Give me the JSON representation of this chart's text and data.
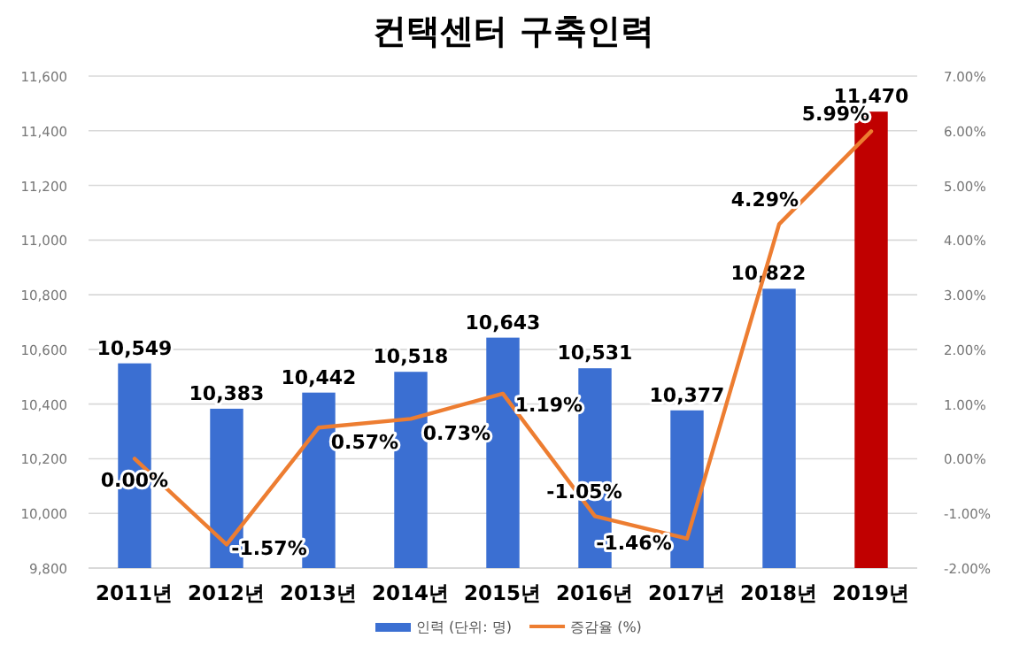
{
  "chart_data": {
    "type": "bar",
    "title": "컨택센터 구축인력",
    "categories": [
      "2011년",
      "2012년",
      "2013년",
      "2014년",
      "2015년",
      "2016년",
      "2017년",
      "2018년",
      "2019년"
    ],
    "series": [
      {
        "name": "인력 (단위: 명)",
        "colors": [
          "#3b6fd2",
          "#3b6fd2",
          "#3b6fd2",
          "#3b6fd2",
          "#3b6fd2",
          "#3b6fd2",
          "#3b6fd2",
          "#3b6fd2",
          "#c00000"
        ],
        "values": [
          10549,
          10383,
          10442,
          10518,
          10643,
          10531,
          10377,
          10822,
          11470
        ],
        "value_labels": [
          "10,549",
          "10,383",
          "10,442",
          "10,518",
          "10,643",
          "10,531",
          "10,377",
          "10,822",
          "11,470"
        ]
      },
      {
        "name": "증감율 (%)",
        "type": "line",
        "axis": "y2",
        "color": "#ed7d31",
        "values": [
          0,
          -1.57,
          0.57,
          0.73,
          1.19,
          -1.05,
          -1.46,
          4.29,
          5.99
        ],
        "value_labels": [
          "0.00%",
          "-1.57%",
          "0.57%",
          "0.73%",
          "1.19%",
          "-1.05%",
          "-1.46%",
          "4.29%",
          "5.99%"
        ]
      }
    ],
    "ylim": [
      9800,
      11600
    ],
    "yticks": [
      {
        "value": 9800,
        "label": "9,800"
      },
      {
        "value": 10000,
        "label": "10,000"
      },
      {
        "value": 10200,
        "label": "10,200"
      },
      {
        "value": 10400,
        "label": "10,400"
      },
      {
        "value": 10600,
        "label": "10,600"
      },
      {
        "value": 10800,
        "label": "10,800"
      },
      {
        "value": 11000,
        "label": "11,000"
      },
      {
        "value": 11200,
        "label": "11,200"
      },
      {
        "value": 11400,
        "label": "11,400"
      },
      {
        "value": 11600,
        "label": "11,600"
      }
    ],
    "y2lim": [
      -2,
      7
    ],
    "y2ticks": [
      {
        "value": -2,
        "label": "-2.00%"
      },
      {
        "value": -1,
        "label": "-1.00%"
      },
      {
        "value": 0,
        "label": "0.00%"
      },
      {
        "value": 1,
        "label": "1.00%"
      },
      {
        "value": 2,
        "label": "2.00%"
      },
      {
        "value": 3,
        "label": "3.00%"
      },
      {
        "value": 4,
        "label": "4.00%"
      },
      {
        "value": 5,
        "label": "5.00%"
      },
      {
        "value": 6,
        "label": "6.00%"
      },
      {
        "value": 7,
        "label": "7.00%"
      }
    ],
    "grid": "y",
    "legend": "bottom",
    "marker": "none",
    "line_style": "solid"
  }
}
